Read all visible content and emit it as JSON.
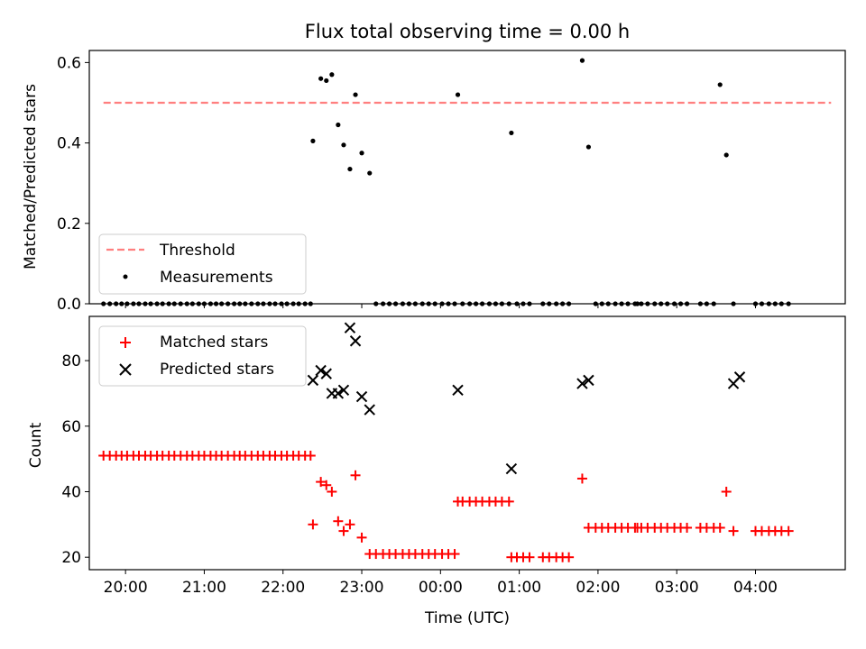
{
  "title": "Flux total observing time = 0.00 h",
  "xlabel": "Time (UTC)",
  "x_ticks": [
    "20:00",
    "21:00",
    "22:00",
    "23:00",
    "00:00",
    "01:00",
    "02:00",
    "03:00",
    "04:00"
  ],
  "colors": {
    "threshold": "#ff7f7f",
    "matched": "#ff0000",
    "predicted": "#000000",
    "measurement": "#000000"
  },
  "chart_data": [
    {
      "type": "scatter",
      "ylabel": "Matched/Predicted stars",
      "ylim": [
        0.0,
        0.63
      ],
      "y_ticks": [
        "0.0",
        "0.2",
        "0.4",
        "0.6"
      ],
      "x_unit": "hours after 19:00 UTC",
      "xlim": [
        0.54,
        10.14
      ],
      "legend_position": "lower-left",
      "legend": [
        "Threshold",
        "Measurements"
      ],
      "series": [
        {
          "name": "Threshold",
          "kind": "line",
          "x": [
            0.72,
            9.96
          ],
          "values": [
            0.5,
            0.5
          ]
        },
        {
          "name": "Measurements",
          "kind": "scatter",
          "x": [
            0.72,
            0.8,
            0.88,
            0.95,
            1.02,
            1.1,
            1.17,
            1.25,
            1.32,
            1.4,
            1.47,
            1.55,
            1.62,
            1.7,
            1.78,
            1.85,
            1.93,
            2.0,
            2.08,
            2.15,
            2.22,
            2.3,
            2.38,
            2.45,
            2.52,
            2.6,
            2.68,
            2.75,
            2.83,
            2.9,
            2.98,
            3.05,
            3.13,
            3.2,
            3.28,
            3.35,
            3.38,
            3.48,
            3.55,
            3.62,
            3.7,
            3.77,
            3.85,
            3.92,
            4.0,
            4.1,
            4.18,
            4.27,
            4.35,
            4.43,
            4.52,
            4.6,
            4.68,
            4.77,
            4.85,
            4.93,
            5.02,
            5.1,
            5.18,
            5.22,
            5.28,
            5.37,
            5.45,
            5.53,
            5.62,
            5.7,
            5.78,
            5.87,
            5.9,
            5.97,
            6.05,
            6.13,
            6.3,
            6.38,
            6.47,
            6.55,
            6.63,
            6.8,
            6.88,
            6.97,
            7.05,
            7.13,
            7.22,
            7.3,
            7.38,
            7.47,
            7.5,
            7.55,
            7.63,
            7.72,
            7.8,
            7.88,
            7.97,
            8.05,
            8.13,
            8.3,
            8.38,
            8.47,
            8.55,
            8.63,
            8.72,
            9.0,
            9.08,
            9.17,
            9.25,
            9.33,
            9.42
          ],
          "values": [
            0,
            0,
            0,
            0,
            0,
            0,
            0,
            0,
            0,
            0,
            0,
            0,
            0,
            0,
            0,
            0,
            0,
            0,
            0,
            0,
            0,
            0,
            0,
            0,
            0,
            0,
            0,
            0,
            0,
            0,
            0,
            0,
            0,
            0,
            0,
            0,
            0.405,
            0.56,
            0.555,
            0.57,
            0.445,
            0.395,
            0.335,
            0.52,
            0.375,
            0.325,
            0,
            0,
            0,
            0,
            0,
            0,
            0,
            0,
            0,
            0,
            0,
            0,
            0,
            0.52,
            0,
            0,
            0,
            0,
            0,
            0,
            0,
            0,
            0.425,
            0,
            0,
            0,
            0,
            0,
            0,
            0,
            0,
            0.605,
            0.39,
            0,
            0,
            0,
            0,
            0,
            0,
            0,
            0,
            0,
            0,
            0,
            0,
            0,
            0,
            0,
            0,
            0,
            0,
            0,
            0.545,
            0.37,
            0,
            0,
            0,
            0,
            0,
            0,
            0
          ]
        }
      ]
    },
    {
      "type": "scatter",
      "ylabel": "Count",
      "ylim": [
        16.2,
        93.5
      ],
      "y_ticks": [
        "20",
        "40",
        "60",
        "80"
      ],
      "x_unit": "hours after 19:00 UTC",
      "xlim": [
        0.54,
        10.14
      ],
      "legend_position": "upper-left",
      "legend": [
        "Matched stars",
        "Predicted stars"
      ],
      "series": [
        {
          "name": "Matched stars",
          "kind": "scatter",
          "x": [
            0.72,
            0.8,
            0.88,
            0.95,
            1.02,
            1.1,
            1.17,
            1.25,
            1.32,
            1.4,
            1.47,
            1.55,
            1.62,
            1.7,
            1.78,
            1.85,
            1.93,
            2.0,
            2.08,
            2.15,
            2.22,
            2.3,
            2.38,
            2.45,
            2.52,
            2.6,
            2.68,
            2.75,
            2.83,
            2.9,
            2.98,
            3.05,
            3.13,
            3.2,
            3.28,
            3.35,
            3.38,
            3.48,
            3.55,
            3.62,
            3.7,
            3.77,
            3.85,
            3.92,
            4.0,
            4.1,
            4.18,
            4.27,
            4.35,
            4.43,
            4.52,
            4.6,
            4.68,
            4.77,
            4.85,
            4.93,
            5.02,
            5.1,
            5.18,
            5.22,
            5.28,
            5.37,
            5.45,
            5.53,
            5.62,
            5.7,
            5.78,
            5.87,
            5.9,
            5.97,
            6.05,
            6.13,
            6.3,
            6.38,
            6.47,
            6.55,
            6.63,
            6.8,
            6.88,
            6.97,
            7.05,
            7.13,
            7.22,
            7.3,
            7.38,
            7.47,
            7.5,
            7.55,
            7.63,
            7.72,
            7.8,
            7.88,
            7.97,
            8.05,
            8.13,
            8.3,
            8.38,
            8.47,
            8.55,
            8.63,
            8.72,
            9.0,
            9.08,
            9.17,
            9.25,
            9.33,
            9.42
          ],
          "values": [
            51,
            51,
            51,
            51,
            51,
            51,
            51,
            51,
            51,
            51,
            51,
            51,
            51,
            51,
            51,
            51,
            51,
            51,
            51,
            51,
            51,
            51,
            51,
            51,
            51,
            51,
            51,
            51,
            51,
            51,
            51,
            51,
            51,
            51,
            51,
            51,
            30,
            43,
            42,
            40,
            31,
            28,
            30,
            45,
            26,
            21,
            21,
            21,
            21,
            21,
            21,
            21,
            21,
            21,
            21,
            21,
            21,
            21,
            21,
            37,
            37,
            37,
            37,
            37,
            37,
            37,
            37,
            37,
            20,
            20,
            20,
            20,
            20,
            20,
            20,
            20,
            20,
            44,
            29,
            29,
            29,
            29,
            29,
            29,
            29,
            29,
            29,
            29,
            29,
            29,
            29,
            29,
            29,
            29,
            29,
            29,
            29,
            29,
            29,
            40,
            28,
            28,
            28,
            28,
            28,
            28,
            28
          ]
        },
        {
          "name": "Predicted stars",
          "kind": "scatter",
          "x": [
            3.38,
            3.48,
            3.55,
            3.62,
            3.7,
            3.77,
            3.85,
            3.92,
            4.0,
            4.1,
            5.22,
            5.9,
            6.8,
            6.88,
            8.72,
            8.8
          ],
          "values": [
            74,
            77,
            76,
            70,
            70,
            71,
            90,
            86,
            69,
            65,
            71,
            47,
            73,
            74,
            73,
            75
          ]
        }
      ]
    }
  ]
}
